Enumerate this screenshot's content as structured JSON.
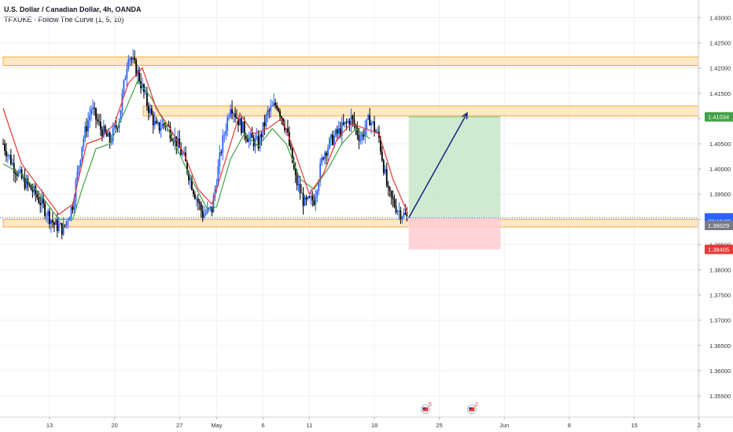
{
  "header": {
    "title": "U.S. Dollar / Canadian Dollar, 4h, OANDA",
    "indicator": "TFXUKE · Follow The Curve (1, 5, 10)"
  },
  "colors": {
    "bull": "#2962ff",
    "bear": "#000000",
    "ma_fast": "#e53935",
    "ma_slow": "#43a047",
    "zone_fill": "#ffe0b2",
    "zone_border": "#f7a940",
    "target_fill": "#c8e6c9",
    "stop_fill": "#ffcdd2",
    "arrow": "#1a237e",
    "current_line": "#2962ff",
    "grid": "#eef0f3"
  },
  "chart_data": {
    "type": "candlestick",
    "instrument": "U.S. Dollar / Canadian Dollar",
    "timeframe": "4h",
    "broker": "OANDA",
    "indicator": "Follow The Curve (1, 5, 10)",
    "ylim": [
      1.3508,
      1.4335
    ],
    "y_ticks": [
      "1.43000",
      "1.42500",
      "1.42000",
      "1.41500",
      "1.41000",
      "1.40500",
      "1.40000",
      "1.39500",
      "1.39000",
      "1.38500",
      "1.38000",
      "1.37500",
      "1.37000",
      "1.36500",
      "1.36000",
      "1.35500"
    ],
    "x_ticks": [
      {
        "label": "13",
        "day": 13
      },
      {
        "label": "20",
        "day": 20
      },
      {
        "label": "27",
        "day": 27
      },
      {
        "label": "May",
        "day": 31
      },
      {
        "label": "6",
        "day": 36
      },
      {
        "label": "11",
        "day": 41
      },
      {
        "label": "18",
        "day": 48
      },
      {
        "label": "25",
        "day": 55
      },
      {
        "label": "Jun",
        "day": 62
      },
      {
        "label": "8",
        "day": 69
      },
      {
        "label": "15",
        "day": 76
      },
      {
        "label": "2",
        "day": 83
      }
    ],
    "closes": [
      {
        "day": 8.0,
        "price": 1.405
      },
      {
        "day": 9.0,
        "price": 1.401
      },
      {
        "day": 10.0,
        "price": 1.398
      },
      {
        "day": 11.5,
        "price": 1.395
      },
      {
        "day": 12.5,
        "price": 1.392
      },
      {
        "day": 13.5,
        "price": 1.389
      },
      {
        "day": 14.5,
        "price": 1.388
      },
      {
        "day": 15.5,
        "price": 1.393
      },
      {
        "day": 16.5,
        "price": 1.405
      },
      {
        "day": 17.5,
        "price": 1.412
      },
      {
        "day": 18.5,
        "price": 1.408
      },
      {
        "day": 19.5,
        "price": 1.4055
      },
      {
        "day": 20.5,
        "price": 1.41
      },
      {
        "day": 21.5,
        "price": 1.423
      },
      {
        "day": 22.5,
        "price": 1.419
      },
      {
        "day": 23.5,
        "price": 1.413
      },
      {
        "day": 24.5,
        "price": 1.408
      },
      {
        "day": 25.5,
        "price": 1.409
      },
      {
        "day": 26.5,
        "price": 1.406
      },
      {
        "day": 27.5,
        "price": 1.402
      },
      {
        "day": 28.5,
        "price": 1.396
      },
      {
        "day": 29.5,
        "price": 1.391
      },
      {
        "day": 30.5,
        "price": 1.392
      },
      {
        "day": 31.5,
        "price": 1.404
      },
      {
        "day": 32.5,
        "price": 1.413
      },
      {
        "day": 33.5,
        "price": 1.409
      },
      {
        "day": 34.5,
        "price": 1.406
      },
      {
        "day": 35.5,
        "price": 1.405
      },
      {
        "day": 36.5,
        "price": 1.411
      },
      {
        "day": 37.5,
        "price": 1.413
      },
      {
        "day": 38.5,
        "price": 1.408
      },
      {
        "day": 39.5,
        "price": 1.398
      },
      {
        "day": 40.5,
        "price": 1.393
      },
      {
        "day": 41.5,
        "price": 1.394
      },
      {
        "day": 42.5,
        "price": 1.403
      },
      {
        "day": 43.5,
        "price": 1.406
      },
      {
        "day": 44.5,
        "price": 1.408
      },
      {
        "day": 45.5,
        "price": 1.41
      },
      {
        "day": 46.5,
        "price": 1.406
      },
      {
        "day": 47.5,
        "price": 1.41
      },
      {
        "day": 48.5,
        "price": 1.406
      },
      {
        "day": 49.5,
        "price": 1.395
      },
      {
        "day": 50.5,
        "price": 1.392
      },
      {
        "day": 51.5,
        "price": 1.3903
      }
    ],
    "ma_fast": [
      {
        "day": 8.0,
        "price": 1.412
      },
      {
        "day": 10.0,
        "price": 1.401
      },
      {
        "day": 12.0,
        "price": 1.396
      },
      {
        "day": 14.0,
        "price": 1.391
      },
      {
        "day": 15.5,
        "price": 1.393
      },
      {
        "day": 17.0,
        "price": 1.405
      },
      {
        "day": 18.5,
        "price": 1.406
      },
      {
        "day": 20.0,
        "price": 1.409
      },
      {
        "day": 21.5,
        "price": 1.417
      },
      {
        "day": 23.0,
        "price": 1.42
      },
      {
        "day": 24.5,
        "price": 1.412
      },
      {
        "day": 26.0,
        "price": 1.408
      },
      {
        "day": 27.5,
        "price": 1.403
      },
      {
        "day": 29.0,
        "price": 1.396
      },
      {
        "day": 30.5,
        "price": 1.393
      },
      {
        "day": 32.0,
        "price": 1.402
      },
      {
        "day": 33.5,
        "price": 1.411
      },
      {
        "day": 35.0,
        "price": 1.407
      },
      {
        "day": 36.5,
        "price": 1.408
      },
      {
        "day": 38.0,
        "price": 1.41
      },
      {
        "day": 39.5,
        "price": 1.403
      },
      {
        "day": 41.0,
        "price": 1.395
      },
      {
        "day": 42.5,
        "price": 1.399
      },
      {
        "day": 44.0,
        "price": 1.406
      },
      {
        "day": 45.5,
        "price": 1.409
      },
      {
        "day": 47.0,
        "price": 1.408
      },
      {
        "day": 48.5,
        "price": 1.407
      },
      {
        "day": 50.0,
        "price": 1.398
      },
      {
        "day": 51.6,
        "price": 1.3912
      }
    ],
    "ma_slow": [
      {
        "day": 8.0,
        "price": 1.401
      },
      {
        "day": 10.0,
        "price": 1.399
      },
      {
        "day": 12.0,
        "price": 1.395
      },
      {
        "day": 14.0,
        "price": 1.39
      },
      {
        "day": 15.5,
        "price": 1.39
      },
      {
        "day": 16.5,
        "price": 1.396
      },
      {
        "day": 18.0,
        "price": 1.404
      },
      {
        "day": 19.5,
        "price": 1.405
      },
      {
        "day": 21.0,
        "price": 1.411
      },
      {
        "day": 22.5,
        "price": 1.4175
      },
      {
        "day": 24.0,
        "price": 1.414
      },
      {
        "day": 26.0,
        "price": 1.407
      },
      {
        "day": 28.0,
        "price": 1.399
      },
      {
        "day": 30.0,
        "price": 1.392
      },
      {
        "day": 31.0,
        "price": 1.3925
      },
      {
        "day": 32.5,
        "price": 1.402
      },
      {
        "day": 34.0,
        "price": 1.407
      },
      {
        "day": 35.5,
        "price": 1.4045
      },
      {
        "day": 37.0,
        "price": 1.408
      },
      {
        "day": 38.5,
        "price": 1.405
      },
      {
        "day": 40.0,
        "price": 1.398
      },
      {
        "day": 41.5,
        "price": 1.396
      },
      {
        "day": 43.0,
        "price": 1.4
      },
      {
        "day": 44.5,
        "price": 1.405
      },
      {
        "day": 46.0,
        "price": 1.408
      },
      {
        "day": 47.5,
        "price": 1.406
      }
    ],
    "zones": [
      {
        "day_start": 8.0,
        "day_end": 87.0,
        "low": 1.4205,
        "high": 1.4222
      },
      {
        "day_start": 23.1,
        "day_end": 87.0,
        "low": 1.4105,
        "high": 1.4125
      },
      {
        "day_start": 8.0,
        "day_end": 87.0,
        "low": 1.3885,
        "high": 1.39
      }
    ],
    "long_position": {
      "day_start": 51.7,
      "day_end": 61.6,
      "entry": 1.3903,
      "target": 1.41034,
      "stop": 1.38405
    },
    "projection_arrow": {
      "from_day": 51.7,
      "from_price": 1.3903,
      "to_day": 58.0,
      "to_price": 1.4111
    },
    "current_price": 1.3903,
    "price_labels": [
      {
        "text": "1.41034",
        "price": 1.41034,
        "color": "#43a047"
      },
      {
        "text": "1.39030",
        "price": 1.3903,
        "color": "#2962ff"
      },
      {
        "text": "03:19:08",
        "price": 1.38965,
        "color": "#2962ff"
      },
      {
        "text": "1.39029",
        "price": 1.3888,
        "color": "#787b86"
      },
      {
        "text": "1.38405",
        "price": 1.38405,
        "color": "#e53935"
      }
    ],
    "events": [
      {
        "day": 53.5,
        "count": "5"
      },
      {
        "day": 58.5,
        "count": "2"
      }
    ],
    "grid": true,
    "price_axis": "right"
  }
}
